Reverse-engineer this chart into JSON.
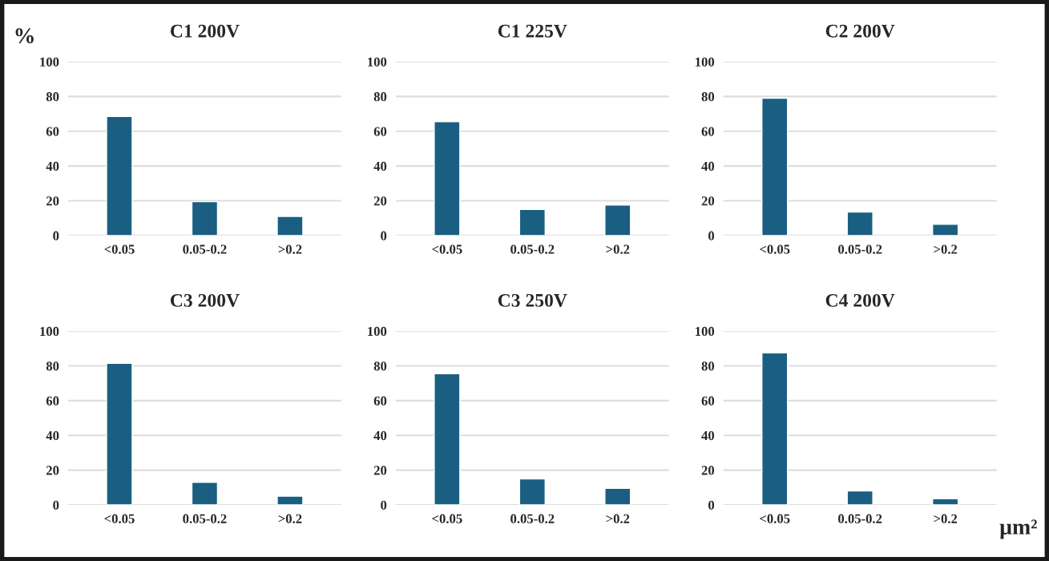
{
  "chart_data": [
    {
      "type": "bar",
      "title": "C1 200V",
      "ylabel": "%",
      "categories": [
        "<0.05",
        "0.05-0.2",
        ">0.2"
      ],
      "values": [
        68.5,
        19.5,
        11
      ],
      "color": "#1a5f82",
      "ylim": [
        0,
        100
      ],
      "yticks": [
        0,
        20,
        40,
        60,
        80,
        100
      ],
      "grid": "y"
    },
    {
      "type": "bar",
      "title": "C1 225V",
      "categories": [
        "<0.05",
        "0.05-0.2",
        ">0.2"
      ],
      "values": [
        65.5,
        15,
        17.5
      ],
      "color": "#1a5f82",
      "ylim": [
        0,
        100
      ],
      "yticks": [
        0,
        20,
        40,
        60,
        80,
        100
      ],
      "grid": "y"
    },
    {
      "type": "bar",
      "title": "C2 200V",
      "categories": [
        "<0.05",
        "0.05-0.2",
        ">0.2"
      ],
      "values": [
        79,
        13.5,
        6.5
      ],
      "color": "#1a5f82",
      "ylim": [
        0,
        100
      ],
      "yticks": [
        0,
        20,
        40,
        60,
        80,
        100
      ],
      "grid": "y"
    },
    {
      "type": "bar",
      "title": "C3 200V",
      "categories": [
        "<0.05",
        "0.05-0.2",
        ">0.2"
      ],
      "values": [
        81.5,
        13,
        5
      ],
      "color": "#1a5f82",
      "ylim": [
        0,
        100
      ],
      "yticks": [
        0,
        20,
        40,
        60,
        80,
        100
      ],
      "grid": "y"
    },
    {
      "type": "bar",
      "title": "C3 250V",
      "categories": [
        "<0.05",
        "0.05-0.2",
        ">0.2"
      ],
      "values": [
        75.5,
        15,
        9.5
      ],
      "color": "#1a5f82",
      "ylim": [
        0,
        100
      ],
      "yticks": [
        0,
        20,
        40,
        60,
        80,
        100
      ],
      "grid": "y"
    },
    {
      "type": "bar",
      "title": "C4 200V",
      "xlabel": "µm²",
      "categories": [
        "<0.05",
        "0.05-0.2",
        ">0.2"
      ],
      "values": [
        87.5,
        8,
        3.5
      ],
      "color": "#1a5f82",
      "ylim": [
        0,
        100
      ],
      "yticks": [
        0,
        20,
        40,
        60,
        80,
        100
      ],
      "grid": "y"
    }
  ]
}
